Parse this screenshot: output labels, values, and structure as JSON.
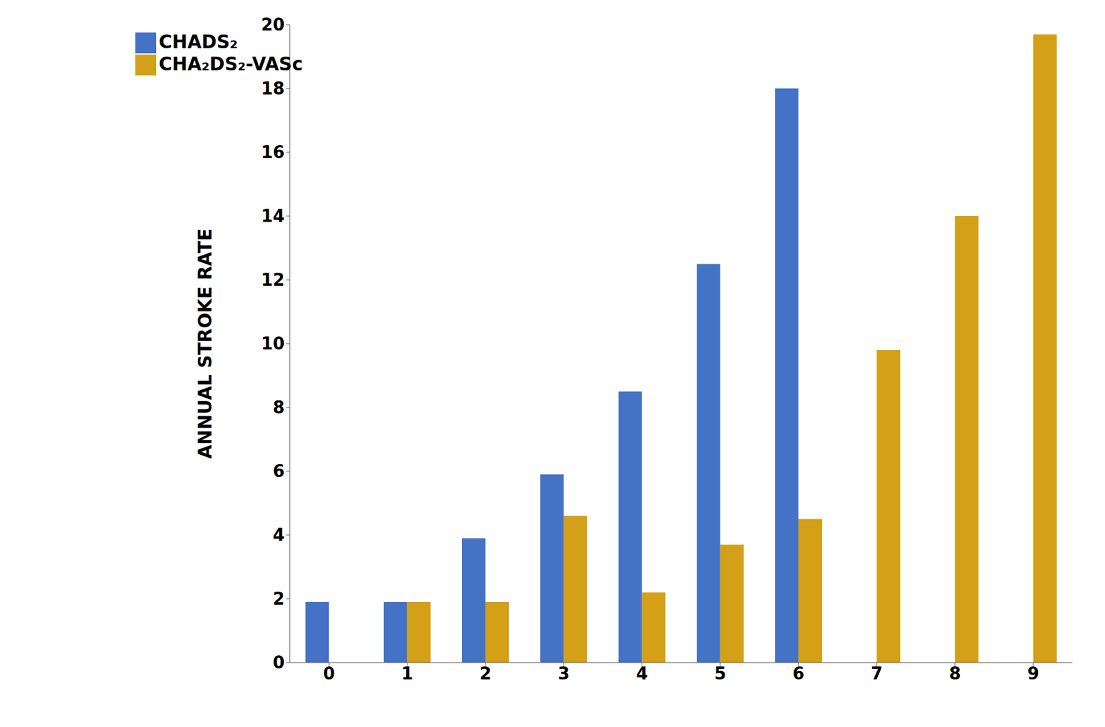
{
  "chart_data": {
    "type": "bar",
    "categories": [
      "0",
      "1",
      "2",
      "3",
      "4",
      "5",
      "6",
      "7",
      "8",
      "9"
    ],
    "series": [
      {
        "name": "CHADS₂",
        "color": "#4472C4",
        "values": [
          1.9,
          1.9,
          3.9,
          5.9,
          8.5,
          12.5,
          18.0,
          null,
          null,
          null
        ]
      },
      {
        "name": "CHA₂DS₂-VASc",
        "color": "#D4A017",
        "values": [
          null,
          1.9,
          1.9,
          4.6,
          2.2,
          3.7,
          4.5,
          9.8,
          14.0,
          19.7
        ]
      }
    ],
    "ylabel": "ANNUAL STROKE RATE",
    "ylim": [
      0,
      20
    ],
    "yticks": [
      0,
      2,
      4,
      6,
      8,
      10,
      12,
      14,
      16,
      18,
      20
    ],
    "grid": false,
    "legend": "upper left"
  }
}
